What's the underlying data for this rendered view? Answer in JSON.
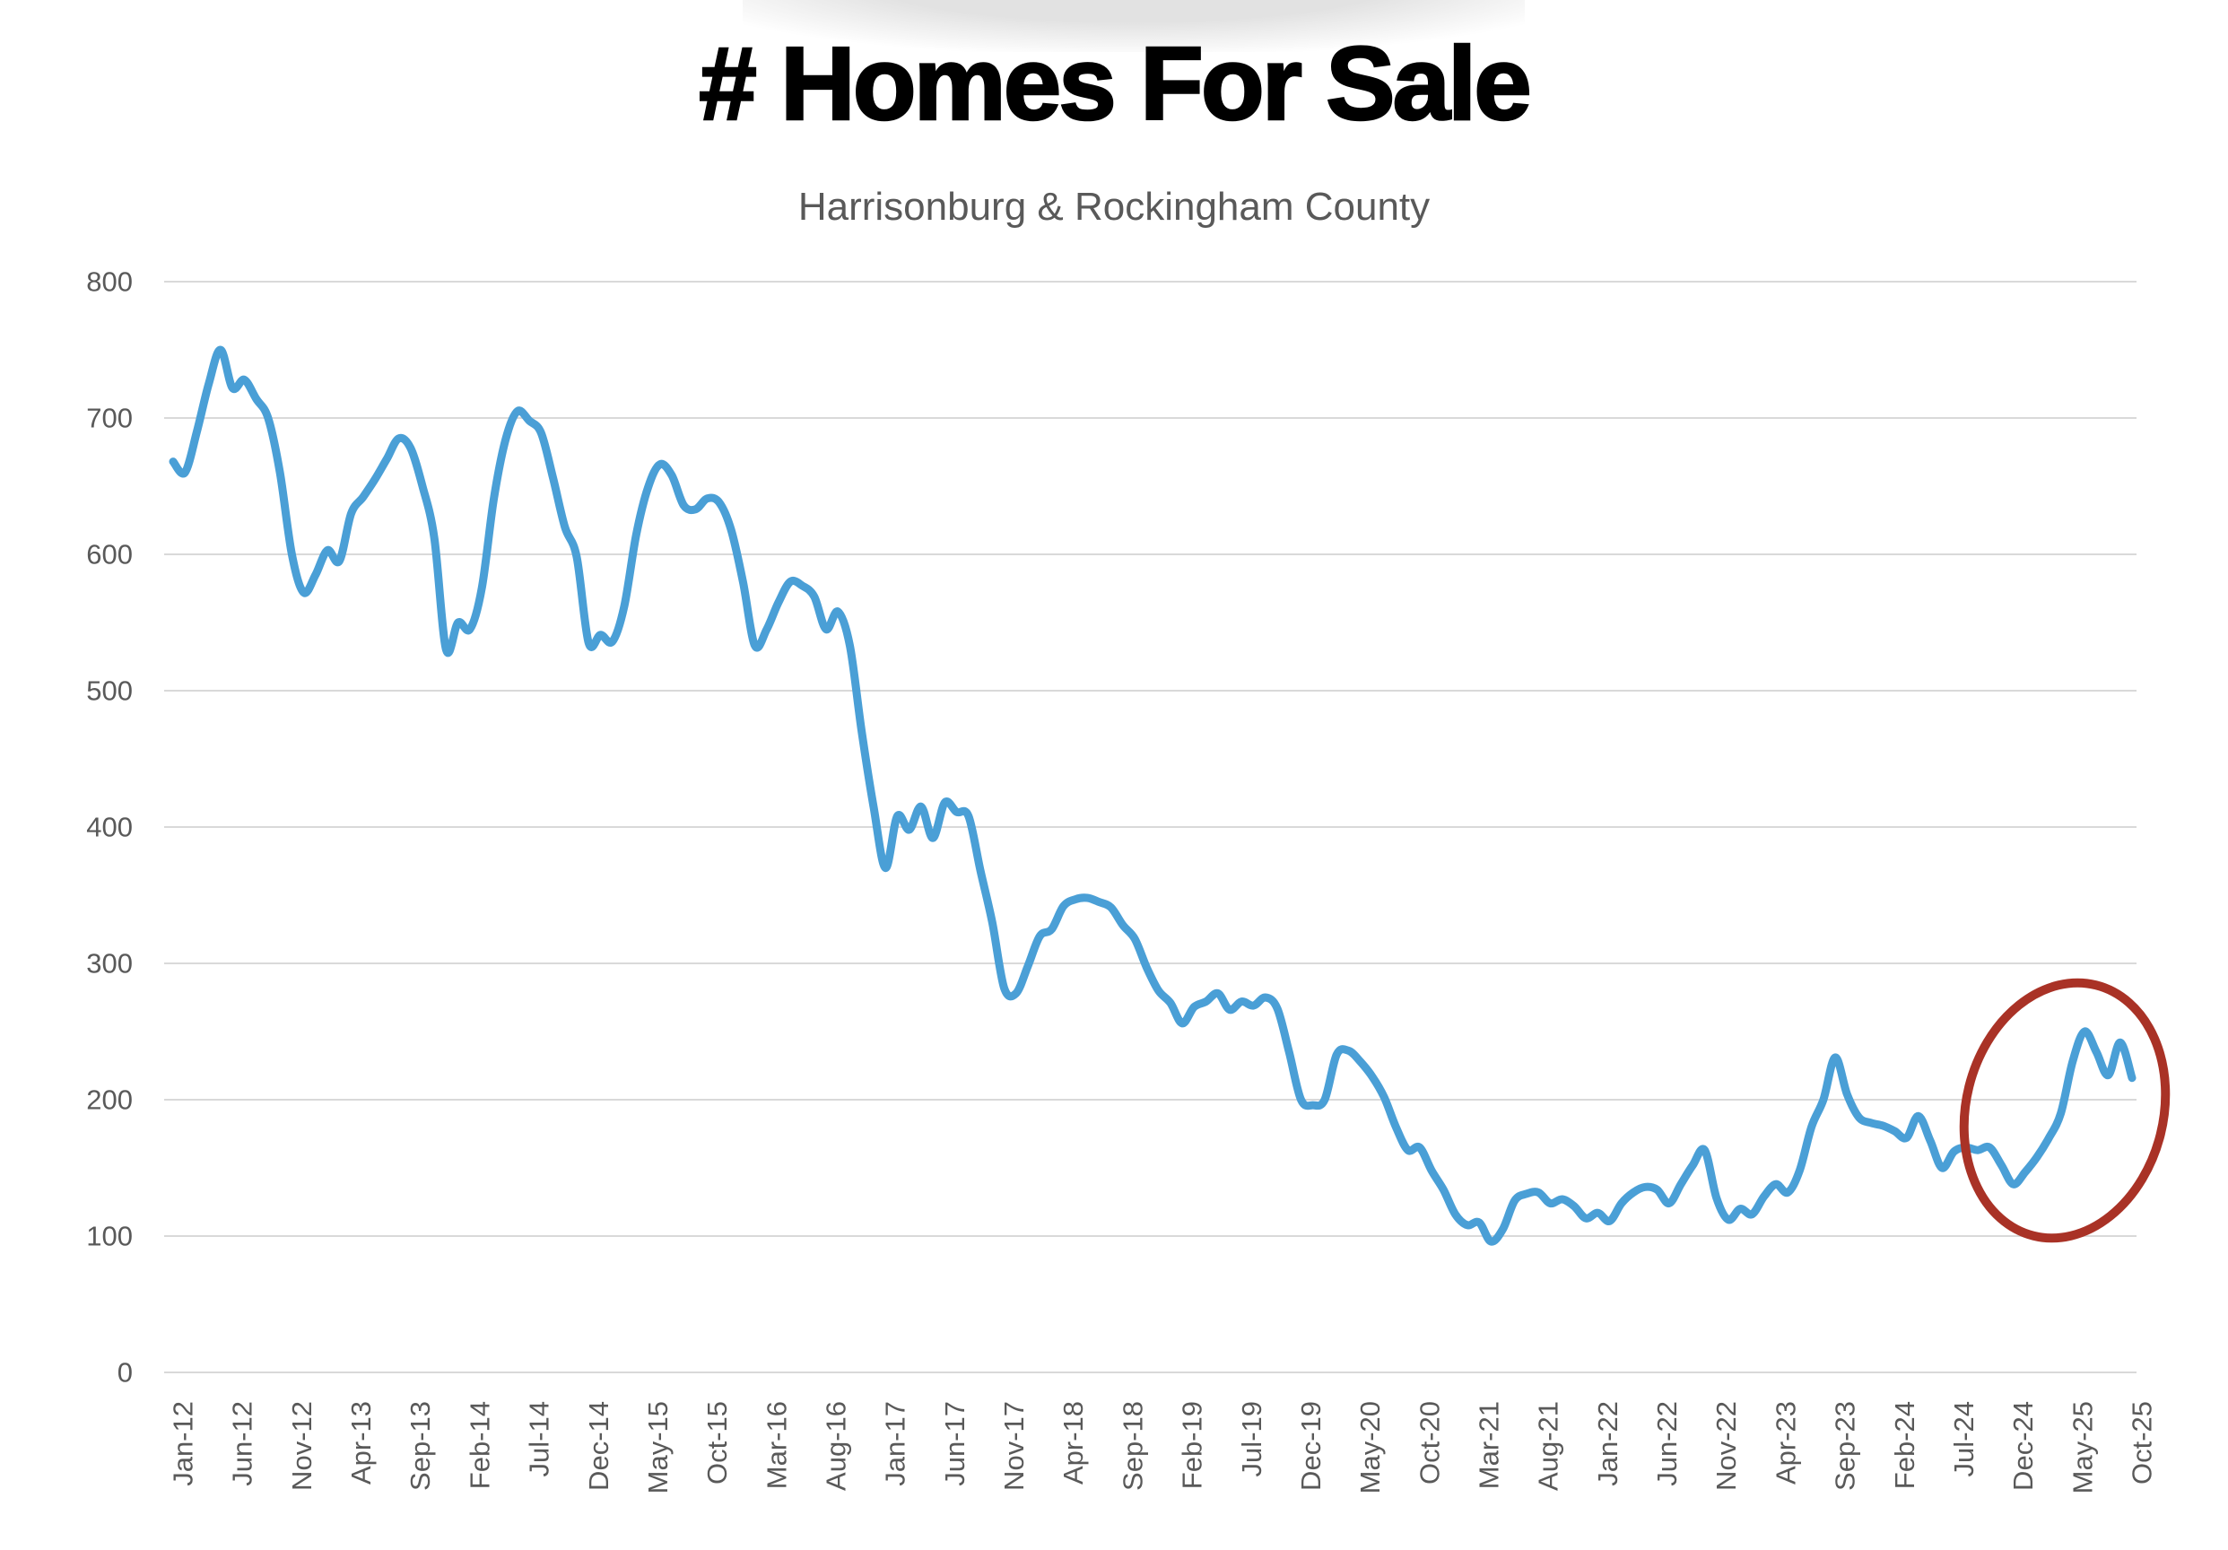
{
  "header": {
    "title": "# Homes For Sale",
    "subtitle": "Harrisonburg & Rockingham County"
  },
  "chart_data": {
    "type": "line",
    "title": "# Homes For Sale",
    "subtitle": "Harrisonburg & Rockingham County",
    "x_unit": "month",
    "x_first": "Jan-12",
    "x_last": "Oct-25",
    "x_tick_every_n_months": 5,
    "x_tick_labels": [
      "Jan-12",
      "Jun-12",
      "Nov-12",
      "Apr-13",
      "Sep-13",
      "Feb-14",
      "Jul-14",
      "Dec-14",
      "May-15",
      "Oct-15",
      "Mar-16",
      "Aug-16",
      "Jan-17",
      "Jun-17",
      "Nov-17",
      "Apr-18",
      "Sep-18",
      "Feb-19",
      "Jul-19",
      "Dec-19",
      "May-20",
      "Oct-20",
      "Mar-21",
      "Aug-21",
      "Jan-22",
      "Jun-22",
      "Nov-22",
      "Apr-23",
      "Sep-23",
      "Feb-24",
      "Jul-24",
      "Dec-24",
      "May-25",
      "Oct-25"
    ],
    "ylim": [
      0,
      800
    ],
    "y_ticks": [
      0,
      100,
      200,
      300,
      400,
      500,
      600,
      700,
      800
    ],
    "grid": "horizontal",
    "legend": "none",
    "series": [
      {
        "name": "# Homes For Sale",
        "monthly_values": [
          668,
          660,
          690,
          725,
          750,
          722,
          728,
          714,
          700,
          660,
          600,
          572,
          585,
          603,
          595,
          630,
          642,
          655,
          670,
          685,
          678,
          650,
          612,
          530,
          550,
          545,
          575,
          640,
          684,
          705,
          698,
          689,
          656,
          620,
          598,
          535,
          541,
          536,
          562,
          614,
          649,
          666,
          658,
          636,
          633,
          641,
          638,
          618,
          580,
          533,
          545,
          565,
          580,
          577,
          569,
          545,
          558,
          533,
          470,
          415,
          370,
          408,
          398,
          415,
          392,
          418,
          411,
          408,
          368,
          330,
          282,
          278,
          298,
          320,
          325,
          342,
          347,
          348,
          345,
          341,
          328,
          318,
          297,
          280,
          271,
          256,
          268,
          272,
          278,
          266,
          272,
          269,
          275,
          267,
          235,
          200,
          196,
          200,
          233,
          236,
          228,
          217,
          202,
          180,
          163,
          165,
          148,
          134,
          116,
          108,
          110,
          96,
          105,
          126,
          131,
          132,
          124,
          127,
          122,
          113,
          117,
          111,
          124,
          132,
          136,
          134,
          124,
          138,
          152,
          163,
          128,
          112,
          120,
          116,
          129,
          138,
          132,
          148,
          180,
          200,
          231,
          204,
          187,
          183,
          181,
          177,
          172,
          188,
          170,
          150,
          162,
          165,
          163,
          165,
          152,
          138,
          147,
          158,
          172,
          190,
          228,
          250,
          235,
          218,
          242,
          216
        ]
      }
    ],
    "colors": {
      "line": "#4a9fd6",
      "grid": "#d9d9d9",
      "axis_text": "#595959",
      "title_text": "#000000",
      "subtitle_text": "#595959",
      "annotation": "#a93226"
    },
    "annotation_ellipse": {
      "cx": 2302,
      "cy": 1238,
      "rx": 110,
      "ry": 144,
      "rotation_deg": 14,
      "stroke_width": 10
    }
  }
}
